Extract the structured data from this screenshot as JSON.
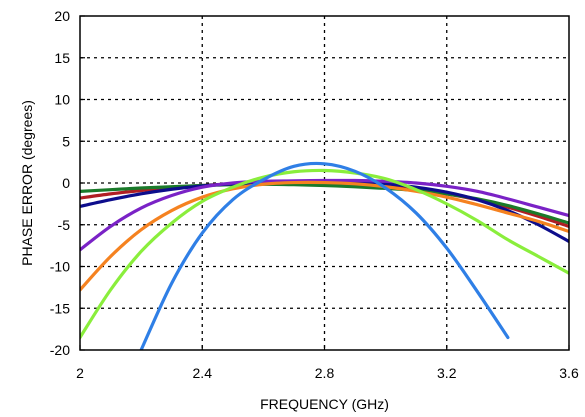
{
  "chart_data": {
    "type": "line",
    "title": "",
    "xlabel": "FREQUENCY (GHz)",
    "ylabel": "PHASE ERROR  (degrees)",
    "xlim": [
      2,
      3.6
    ],
    "ylim": [
      -20,
      20
    ],
    "grid": true,
    "x_ticks": [
      2,
      2.4,
      2.8,
      3.2,
      3.6
    ],
    "x_tick_labels": [
      "2",
      "2.4",
      "2.8",
      "3.2",
      "3.6"
    ],
    "y_ticks": [
      -20,
      -15,
      -10,
      -5,
      0,
      5,
      10,
      15,
      20
    ],
    "y_tick_labels": [
      "-20",
      "-15",
      "-10",
      "-5",
      "0",
      "5",
      "10",
      "15",
      "20"
    ],
    "x": [
      2.0,
      2.1,
      2.2,
      2.3,
      2.4,
      2.5,
      2.6,
      2.7,
      2.8,
      2.9,
      3.0,
      3.1,
      3.2,
      3.3,
      3.4,
      3.5,
      3.6
    ],
    "series": [
      {
        "color": "#b01e24",
        "values": [
          -1.8,
          -1.3,
          -0.9,
          -0.55,
          -0.3,
          -0.1,
          0.0,
          0.05,
          0.0,
          -0.15,
          -0.4,
          -0.8,
          -1.3,
          -2.0,
          -2.9,
          -4.0,
          -5.2
        ]
      },
      {
        "color": "#1a7a2a",
        "values": [
          -1.0,
          -0.8,
          -0.6,
          -0.45,
          -0.3,
          -0.2,
          -0.15,
          -0.2,
          -0.3,
          -0.45,
          -0.65,
          -0.9,
          -1.3,
          -1.9,
          -2.7,
          -3.7,
          -4.8
        ]
      },
      {
        "color": "#0d0d8c",
        "values": [
          -2.8,
          -2.0,
          -1.3,
          -0.75,
          -0.35,
          -0.1,
          0.05,
          0.15,
          0.15,
          0.1,
          -0.1,
          -0.5,
          -1.1,
          -2.0,
          -3.3,
          -5.0,
          -7.0
        ]
      },
      {
        "color": "#7a22c6",
        "values": [
          -8.0,
          -5.2,
          -3.0,
          -1.5,
          -0.5,
          0.0,
          0.2,
          0.25,
          0.3,
          0.3,
          0.2,
          0.0,
          -0.4,
          -1.0,
          -1.9,
          -2.9,
          -3.9
        ]
      },
      {
        "color": "#f58220",
        "values": [
          -12.8,
          -8.8,
          -5.6,
          -3.3,
          -1.7,
          -0.7,
          -0.15,
          0.05,
          0.05,
          -0.1,
          -0.45,
          -1.0,
          -1.7,
          -2.6,
          -3.6,
          -4.6,
          -5.8
        ]
      },
      {
        "color": "#8aee3c",
        "values": [
          -18.5,
          -12.8,
          -8.2,
          -4.8,
          -2.2,
          -0.5,
          0.7,
          1.35,
          1.5,
          1.2,
          0.5,
          -0.8,
          -2.5,
          -4.5,
          -6.8,
          -8.8,
          -10.8
        ]
      },
      {
        "color": "#2f7fe6",
        "values": [
          null,
          null,
          -20.0,
          -12.0,
          -6.0,
          -2.0,
          0.4,
          2.0,
          2.3,
          1.4,
          -0.6,
          -3.6,
          -7.8,
          -13.0,
          -18.5,
          null,
          null
        ]
      }
    ]
  }
}
